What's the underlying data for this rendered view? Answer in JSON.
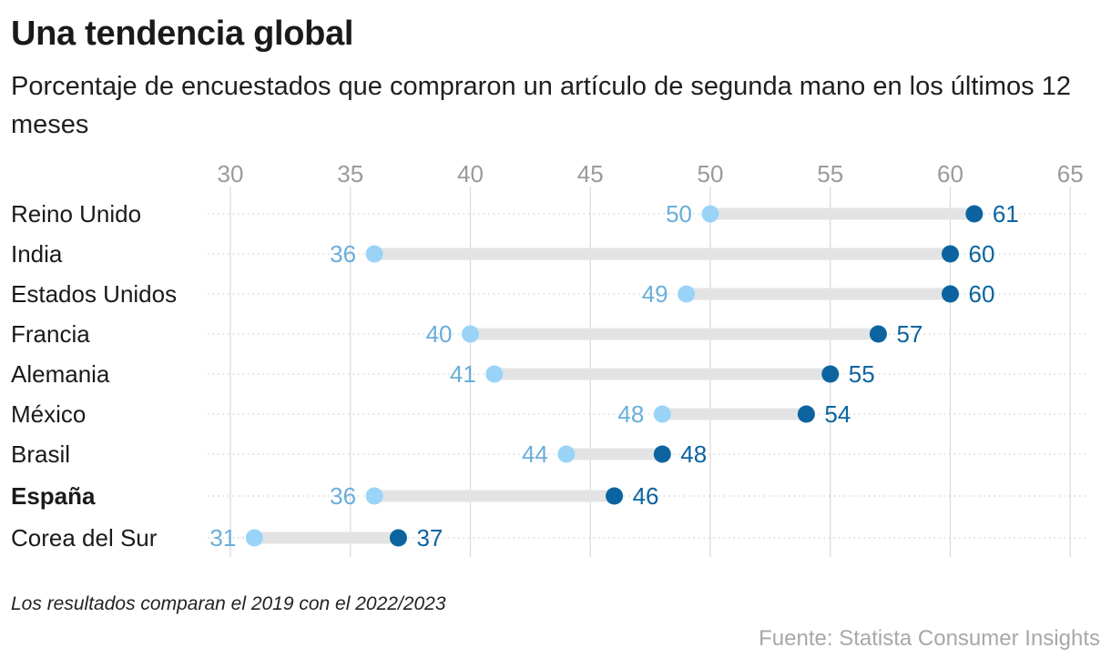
{
  "title": "Una tendencia global",
  "subtitle": "Porcentaje de encuestados que compraron un artículo de segunda mano en los últimos 12 meses",
  "note": "Los resultados comparan el 2019 con el 2022/2023",
  "source": "Fuente: Statista Consumer Insights",
  "colors": {
    "start": "#99d4f8",
    "start_label": "#6aaedb",
    "end": "#0b64a0",
    "connector": "#e3e3e3",
    "grid": "#dcdcdc",
    "tick": "#9a9a9a"
  },
  "chart_data": {
    "type": "dumbbell",
    "x_ticks": [
      30,
      35,
      40,
      45,
      50,
      55,
      60,
      65
    ],
    "xlim": [
      30,
      65
    ],
    "grid": true,
    "categories": [
      "Reino Unido",
      "India",
      "Estados Unidos",
      "Francia",
      "Alemania",
      "México",
      "Brasil",
      "España",
      "Corea del Sur"
    ],
    "highlight": "España",
    "series": [
      {
        "values": [
          50,
          36,
          49,
          40,
          41,
          48,
          44,
          36,
          31
        ]
      },
      {
        "values": [
          61,
          60,
          60,
          57,
          55,
          54,
          48,
          46,
          37
        ]
      }
    ]
  }
}
